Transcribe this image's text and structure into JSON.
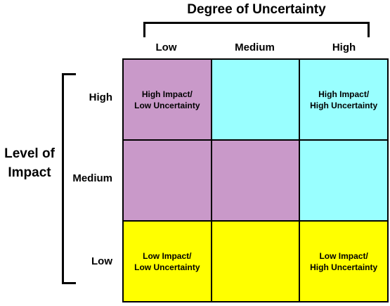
{
  "colors": {
    "purple": "#c999c9",
    "cyan": "#99ffff",
    "yellow": "#ffff00"
  },
  "x_axis": {
    "title": "Degree of Uncertainty",
    "labels": [
      "Low",
      "Medium",
      "High"
    ]
  },
  "y_axis": {
    "title_line1": "Level of",
    "title_line2": "Impact",
    "labels": [
      "High",
      "Medium",
      "Low"
    ]
  },
  "grid": {
    "rows": [
      [
        {
          "line1": "High Impact/",
          "line2": "Low Uncertainty",
          "color": "purple"
        },
        {
          "line1": "",
          "line2": "",
          "color": "cyan"
        },
        {
          "line1": "High Impact/",
          "line2": "High Uncertainty",
          "color": "cyan"
        }
      ],
      [
        {
          "line1": "",
          "line2": "",
          "color": "purple"
        },
        {
          "line1": "",
          "line2": "",
          "color": "purple"
        },
        {
          "line1": "",
          "line2": "",
          "color": "cyan"
        }
      ],
      [
        {
          "line1": "Low Impact/",
          "line2": "Low Uncertainty",
          "color": "yellow"
        },
        {
          "line1": "",
          "line2": "",
          "color": "yellow"
        },
        {
          "line1": "Low Impact/",
          "line2": "High Uncertainty",
          "color": "yellow"
        }
      ]
    ]
  }
}
